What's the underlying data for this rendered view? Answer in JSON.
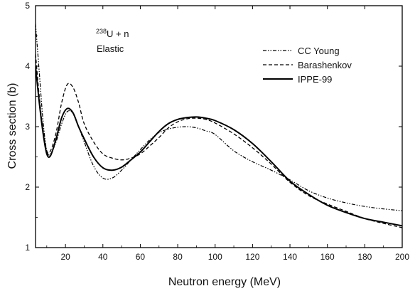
{
  "chart_data": {
    "type": "line",
    "xlabel": "Neutron energy (MeV)",
    "ylabel": "Cross section (b)",
    "xlim": [
      4,
      200
    ],
    "ylim": [
      1,
      5
    ],
    "xticks": [
      20,
      40,
      60,
      80,
      100,
      120,
      140,
      160,
      180,
      200
    ],
    "xtick_labels": [
      "20",
      "40",
      "60",
      "80",
      "100",
      "120",
      "140",
      "160",
      "180",
      "200"
    ],
    "yticks": [
      1,
      2,
      3,
      4,
      5
    ],
    "ytick_labels": [
      "1",
      "2",
      "3",
      "4",
      "5"
    ],
    "annotation": {
      "isotope_mass": "238",
      "reaction": "U + n",
      "channel": "Elastic"
    },
    "legend_position": "top-right",
    "grid": false,
    "series": [
      {
        "name": "CC Young",
        "style": "dash-dot-dot",
        "x": [
          4,
          6,
          8,
          10,
          12,
          15,
          18,
          21,
          24,
          27,
          30,
          35,
          40,
          45,
          50,
          55,
          60,
          65,
          70,
          75,
          80,
          85,
          90,
          95,
          100,
          110,
          120,
          130,
          140,
          150,
          160,
          170,
          180,
          190,
          200
        ],
        "y": [
          4.7,
          3.9,
          3.1,
          2.6,
          2.55,
          2.75,
          3.05,
          3.25,
          3.22,
          3.0,
          2.75,
          2.35,
          2.15,
          2.15,
          2.28,
          2.45,
          2.62,
          2.78,
          2.9,
          2.96,
          2.99,
          3.0,
          2.98,
          2.93,
          2.87,
          2.6,
          2.42,
          2.28,
          2.12,
          1.94,
          1.82,
          1.74,
          1.68,
          1.64,
          1.61
        ]
      },
      {
        "name": "Barashenkov",
        "style": "dashed",
        "x": [
          4,
          6,
          8,
          10,
          12,
          15,
          18,
          21,
          24,
          27,
          30,
          35,
          40,
          45,
          50,
          55,
          60,
          65,
          70,
          75,
          80,
          85,
          90,
          95,
          100,
          110,
          120,
          130,
          140,
          150,
          160,
          170,
          180,
          190,
          200
        ],
        "y": [
          4.2,
          3.5,
          2.95,
          2.6,
          2.6,
          2.9,
          3.4,
          3.7,
          3.65,
          3.4,
          3.05,
          2.75,
          2.55,
          2.48,
          2.45,
          2.48,
          2.55,
          2.68,
          2.82,
          2.98,
          3.08,
          3.13,
          3.14,
          3.12,
          3.06,
          2.88,
          2.65,
          2.38,
          2.08,
          1.86,
          1.72,
          1.6,
          1.48,
          1.4,
          1.33
        ]
      },
      {
        "name": "IPPE-99",
        "style": "solid",
        "x": [
          4,
          6,
          8,
          10,
          12,
          15,
          18,
          21,
          24,
          27,
          30,
          35,
          40,
          45,
          50,
          55,
          60,
          65,
          70,
          75,
          80,
          85,
          90,
          95,
          100,
          110,
          120,
          130,
          140,
          150,
          160,
          170,
          180,
          190,
          200
        ],
        "y": [
          4.0,
          3.4,
          2.9,
          2.55,
          2.52,
          2.8,
          3.15,
          3.3,
          3.23,
          3.0,
          2.8,
          2.5,
          2.32,
          2.28,
          2.33,
          2.45,
          2.58,
          2.75,
          2.92,
          3.05,
          3.12,
          3.15,
          3.16,
          3.14,
          3.1,
          2.95,
          2.72,
          2.42,
          2.1,
          1.88,
          1.7,
          1.58,
          1.48,
          1.42,
          1.36
        ]
      }
    ]
  }
}
